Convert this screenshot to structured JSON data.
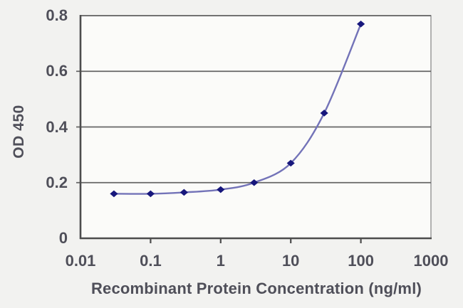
{
  "chart_data": {
    "type": "line",
    "title": "",
    "xlabel": "Recombinant Protein Concentration (ng/ml)",
    "ylabel": "OD 450",
    "x_scale": "log",
    "xlim": [
      0.01,
      1000
    ],
    "ylim": [
      0,
      0.8
    ],
    "x": [
      0.03,
      0.1,
      0.3,
      1,
      3,
      10,
      30,
      100
    ],
    "y": [
      0.16,
      0.16,
      0.165,
      0.175,
      0.2,
      0.27,
      0.45,
      0.77
    ],
    "x_tick_values": [
      0.01,
      0.1,
      1,
      10,
      100,
      1000
    ],
    "x_tick_labels": [
      "0.01",
      "0.1",
      "1",
      "10",
      "100",
      "1000"
    ],
    "y_tick_values": [
      0,
      0.2,
      0.4,
      0.6,
      0.8
    ],
    "y_tick_labels": [
      "0",
      "0.2",
      "0.4",
      "0.6",
      "0.8"
    ],
    "grid": "horizontal-only",
    "legend": "none",
    "marker": "diamond",
    "line_style": "smooth",
    "colors": {
      "line": "#7373b8",
      "marker": "#17177c",
      "gridline": "#666666",
      "axis": "#4d4d4d",
      "frame": "#9a9a9a",
      "text": "#4f4f59",
      "plot_background": "#fbfbf9",
      "outer_background": "#f2f2f0"
    }
  }
}
